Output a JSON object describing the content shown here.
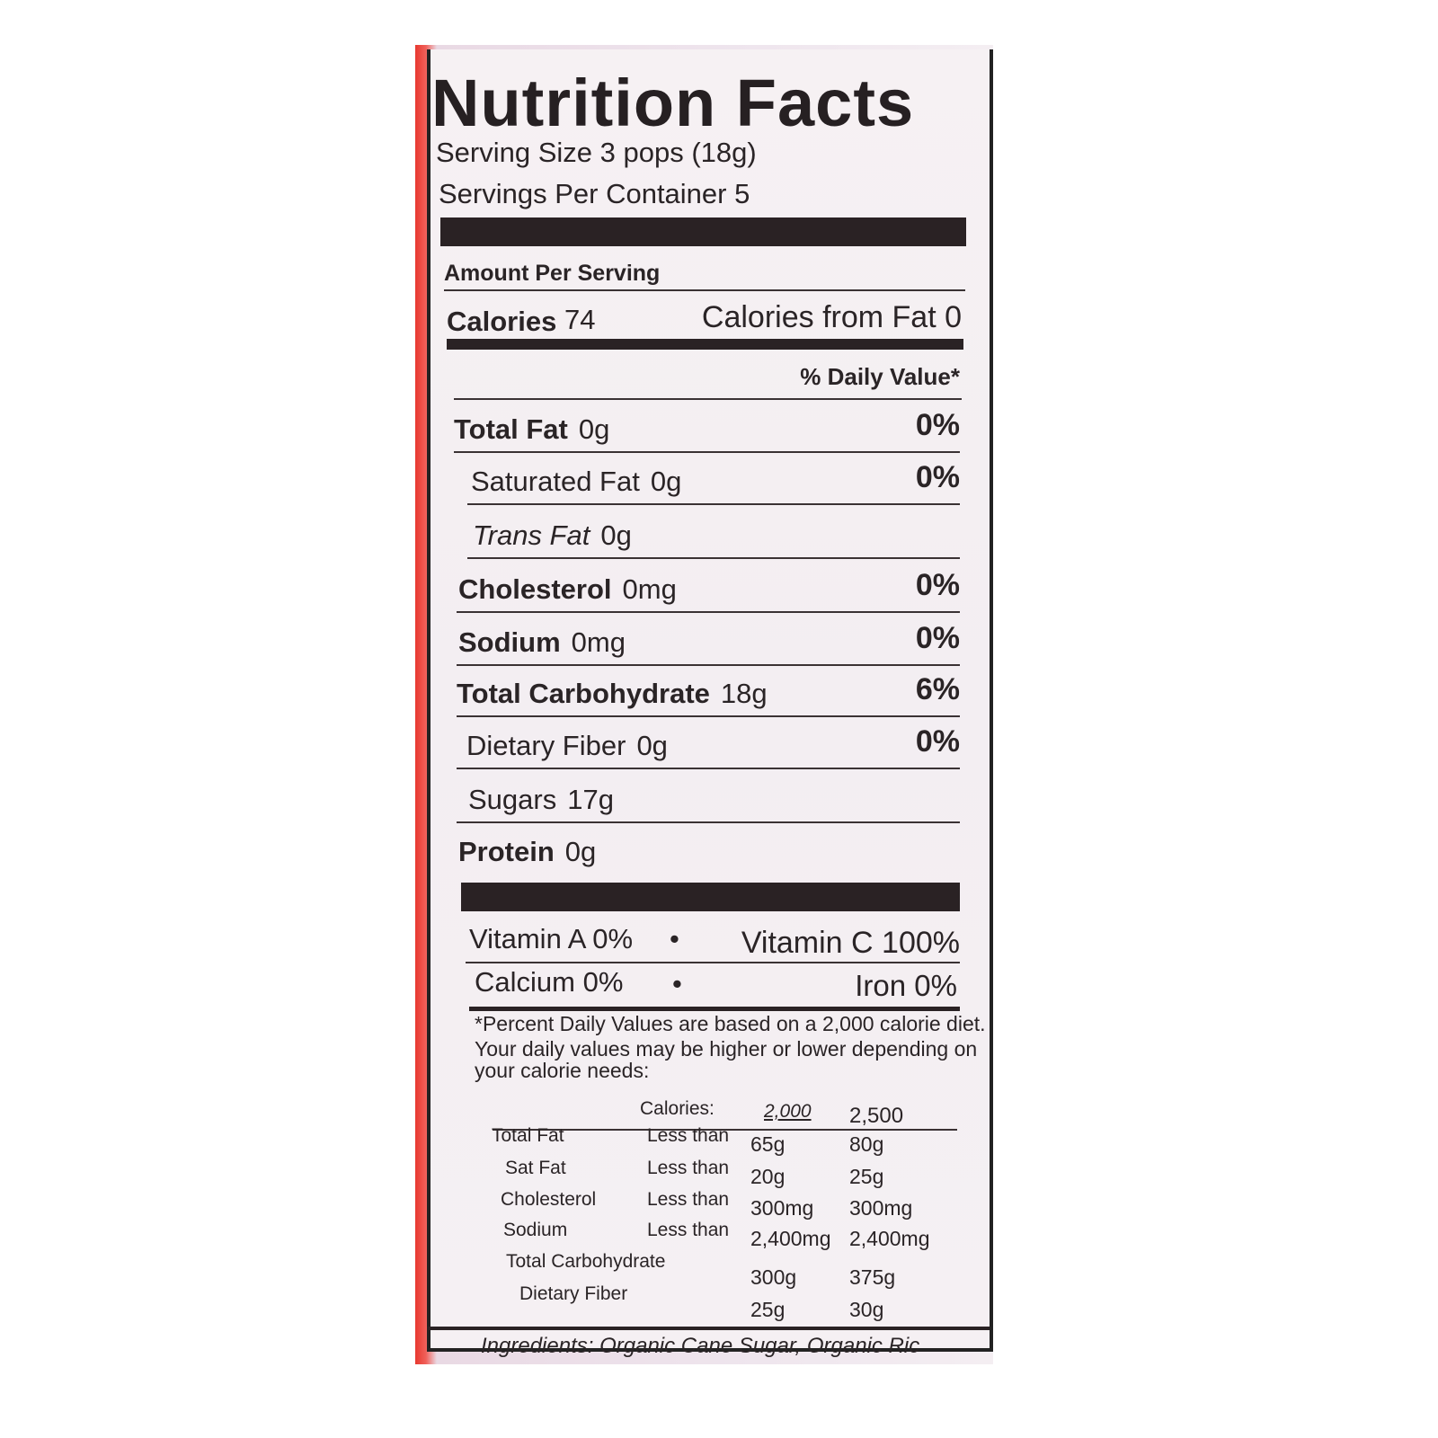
{
  "title": "Nutrition Facts",
  "serving_size": "Serving Size 3 pops (18g)",
  "servings_per_container": "Servings Per Container 5",
  "amount_per_serving": "Amount Per Serving",
  "calories_label": "Calories",
  "calories_value": "74",
  "calories_from_fat": "Calories from Fat 0",
  "daily_value_header": "% Daily Value*",
  "nutrients": [
    {
      "name": "Total Fat",
      "amount": "0g",
      "dv": "0%"
    },
    {
      "name": "Saturated Fat",
      "amount": "0g",
      "dv": "0%"
    },
    {
      "name": "Trans Fat",
      "amount": "0g",
      "dv": ""
    },
    {
      "name": "Cholesterol",
      "amount": "0mg",
      "dv": "0%"
    },
    {
      "name": "Sodium",
      "amount": "0mg",
      "dv": "0%"
    },
    {
      "name": "Total Carbohydrate",
      "amount": "18g",
      "dv": "6%"
    },
    {
      "name": "Dietary Fiber",
      "amount": "0g",
      "dv": "0%"
    },
    {
      "name": "Sugars",
      "amount": "17g",
      "dv": ""
    },
    {
      "name": "Protein",
      "amount": "0g",
      "dv": ""
    }
  ],
  "vitamins": {
    "vitamin_a": "Vitamin A 0%",
    "vitamin_c": "Vitamin C 100%",
    "calcium": "Calcium 0%",
    "iron": "Iron 0%",
    "bullet": "•"
  },
  "footnote": [
    "*Percent Daily Values are based on a 2,000 calorie diet.",
    "Your daily values may be higher or lower depending on",
    "your calorie needs:"
  ],
  "dv_table": {
    "header": [
      "Calories:",
      "2,000",
      "2,500"
    ],
    "rows": [
      [
        "Total Fat",
        "Less than",
        "65g",
        "80g"
      ],
      [
        "Sat Fat",
        "Less than",
        "20g",
        "25g"
      ],
      [
        "Cholesterol",
        "Less than",
        "300mg",
        "300mg"
      ],
      [
        "Sodium",
        "Less than",
        "2,400mg",
        "2,400mg"
      ],
      [
        "Total Carbohydrate",
        "",
        "300g",
        "375g"
      ],
      [
        "Dietary Fiber",
        "",
        "25g",
        "30g"
      ]
    ]
  },
  "ingredients": "Ingredients: Organic Cane Sugar, Organic Ric"
}
